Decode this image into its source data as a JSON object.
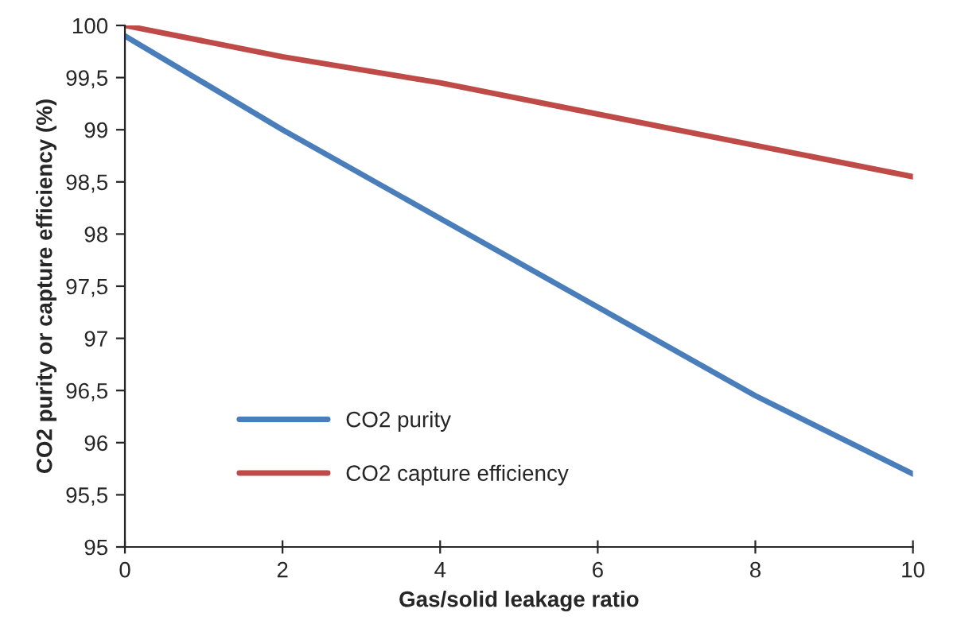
{
  "chart_data": {
    "type": "line",
    "xlabel": "Gas/solid leakage ratio",
    "ylabel": "CO2 purity or capture efficiency (%)",
    "x": [
      0,
      2,
      4,
      6,
      8,
      10
    ],
    "series": [
      {
        "name": "CO2 purity",
        "color": "#4a7ebb",
        "values": [
          99.9,
          99.0,
          98.15,
          97.3,
          96.45,
          95.7
        ]
      },
      {
        "name": "CO2 capture efficiency",
        "color": "#be4b48",
        "values": [
          100,
          99.7,
          99.45,
          99.15,
          98.85,
          98.55
        ]
      }
    ],
    "xlim": [
      0,
      10
    ],
    "xticks": [
      0,
      2,
      4,
      6,
      8,
      10
    ],
    "ylim": [
      95,
      100
    ],
    "yticks": [
      95,
      {
        "value": 95.5,
        "label": "95,5"
      },
      96,
      {
        "value": 96.5,
        "label": "96,5"
      },
      97,
      {
        "value": 97.5,
        "label": "97,5"
      },
      98,
      {
        "value": 98.5,
        "label": "98,5"
      },
      99,
      {
        "value": 99.5,
        "label": "99,5"
      },
      100
    ],
    "grid": false,
    "legend": "lower left",
    "marker": "none",
    "line_style": "solid"
  }
}
